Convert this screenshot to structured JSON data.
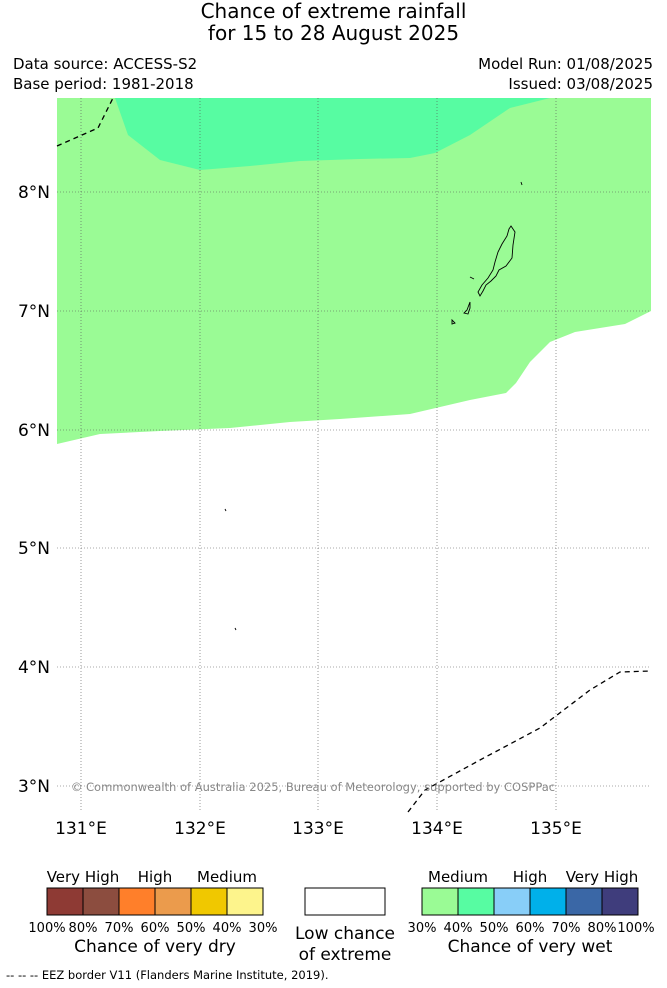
{
  "title": {
    "line1": "Chance of extreme rainfall",
    "line2": "for 15 to 28 August 2025"
  },
  "meta": {
    "data_source": "Data source: ACCESS-S2",
    "base_period": "Base period: 1981-2018",
    "model_run": "Model Run: 01/08/2025",
    "issued": "Issued: 03/08/2025"
  },
  "map": {
    "lat_labels": [
      "8°N",
      "7°N",
      "6°N",
      "5°N",
      "4°N",
      "3°N"
    ],
    "lon_labels": [
      "131°E",
      "132°E",
      "133°E",
      "134°E",
      "135°E"
    ],
    "copyright": "© Commonwealth of Australia 2025, Bureau of Meteorology, supported by COSPPac",
    "colors": {
      "medium_wet": "#9afb95",
      "high_wet_40_50": "#57fca2",
      "eez_border": "#000000",
      "land_outline": "#000000"
    }
  },
  "legend": {
    "dry": {
      "category_labels": [
        "Very High",
        "High",
        "Medium"
      ],
      "tick_labels": [
        "100%",
        "80%",
        "70%",
        "60%",
        "50%",
        "40%",
        "30%"
      ],
      "title": "Chance of very dry",
      "colors": [
        "#8e3a34",
        "#8c4d3f",
        "#ff7f2a",
        "#eb9b4c",
        "#f0c800",
        "#fdf48c"
      ]
    },
    "low": {
      "line1": "Low chance",
      "line2": "of extreme"
    },
    "wet": {
      "category_labels": [
        "Medium",
        "High",
        "Very High"
      ],
      "tick_labels": [
        "30%",
        "40%",
        "50%",
        "60%",
        "70%",
        "80%",
        "100%"
      ],
      "title": "Chance of very wet",
      "colors": [
        "#9afb95",
        "#57fca2",
        "#88cef8",
        "#00b0ea",
        "#3a67a6",
        "#3f3d7c"
      ]
    }
  },
  "footer": {
    "eez_note": "--  --  -- EEZ border V11 (Flanders Marine Institute, 2019)."
  }
}
